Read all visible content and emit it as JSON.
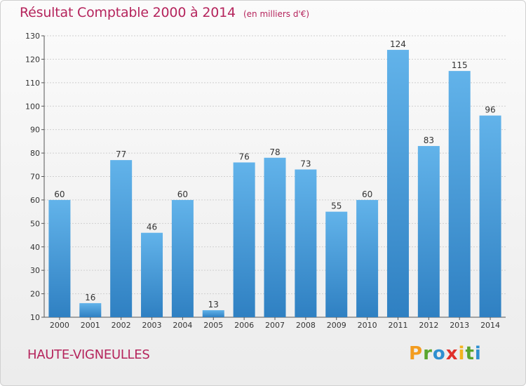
{
  "title": "Résultat Comptable 2000 à 2014",
  "unit_note": "(en milliers d'€)",
  "commune": "HAUTE-VIGNEULLES",
  "logo": {
    "letters": [
      "P",
      "r",
      "o",
      "x",
      "i",
      "t",
      "i"
    ],
    "colors": [
      "#f39c1f",
      "#5aa52e",
      "#2e8fd0",
      "#e0302a",
      "#f3b31f",
      "#5aa52e",
      "#2e8fd0"
    ]
  },
  "colors": {
    "bar_top": "#62b3ea",
    "bar_bottom": "#2f80c2",
    "title": "#b5245c"
  },
  "chart_data": {
    "type": "bar",
    "categories": [
      "2000",
      "2001",
      "2002",
      "2003",
      "2004",
      "2005",
      "2006",
      "2007",
      "2008",
      "2009",
      "2010",
      "2011",
      "2012",
      "2013",
      "2014"
    ],
    "values": [
      60,
      16,
      77,
      46,
      60,
      13,
      76,
      78,
      73,
      55,
      60,
      124,
      83,
      115,
      96
    ],
    "data_labels": [
      "60",
      "16",
      "77",
      "46",
      "60",
      "13",
      "76",
      "78",
      "73",
      "55",
      "60",
      "124",
      "83",
      "115",
      "96"
    ],
    "yticks": [
      10,
      20,
      30,
      40,
      50,
      60,
      70,
      80,
      90,
      100,
      110,
      120,
      130
    ],
    "ylim": [
      10,
      130
    ],
    "grid": true,
    "xlabel": "",
    "ylabel": ""
  }
}
